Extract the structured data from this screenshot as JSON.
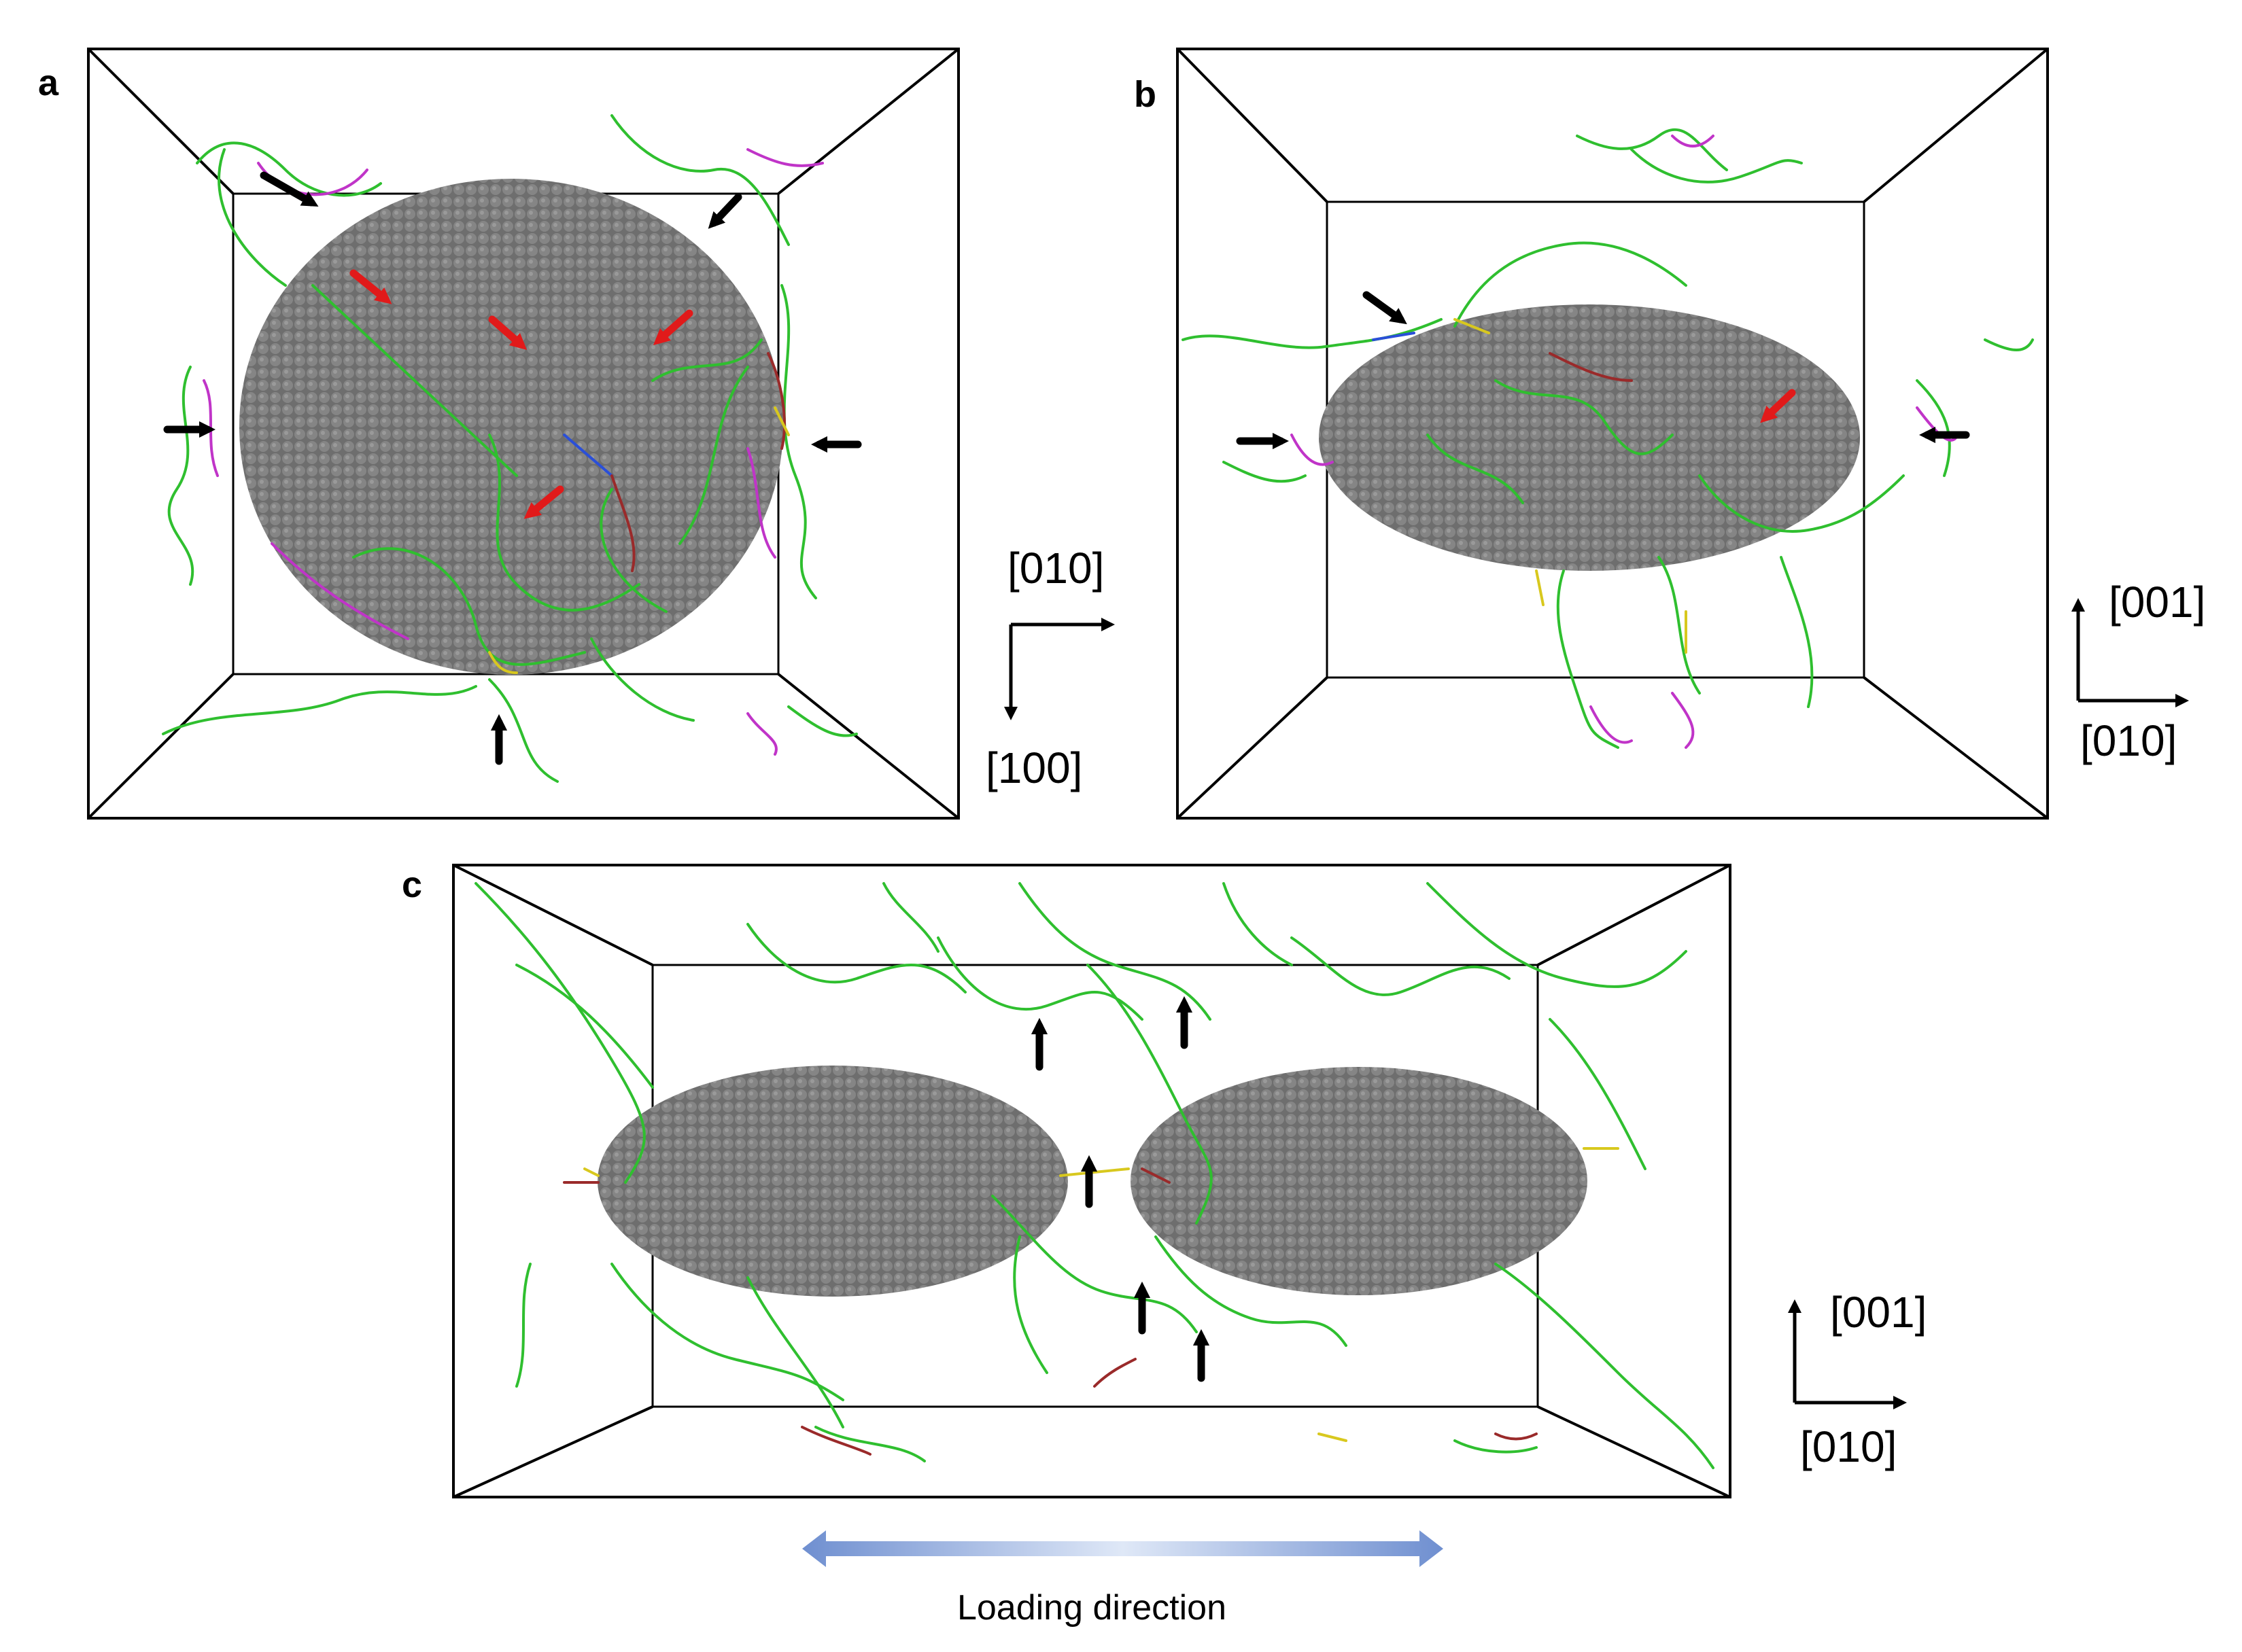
{
  "panels": {
    "a": {
      "label": "a",
      "axis_x": "[010]",
      "axis_y": "[100]"
    },
    "b": {
      "label": "b",
      "axis_up": "[001]",
      "axis_right": "[010]"
    },
    "c": {
      "label": "c",
      "axis_up": "[001]",
      "axis_right": "[010]"
    }
  },
  "caption": {
    "loading": "Loading direction"
  },
  "colors": {
    "particle": "#6e6e6e",
    "dislocation_main": "#2fbf2f",
    "dislocation_magenta": "#c034c8",
    "dislocation_yellow": "#d8c81e",
    "dislocation_red": "#9a2a2a",
    "dislocation_blue": "#2a4fd8",
    "black_arrow": "#000000",
    "red_arrow": "#e11a1a",
    "loading_arrow": "#6f8fd0"
  }
}
